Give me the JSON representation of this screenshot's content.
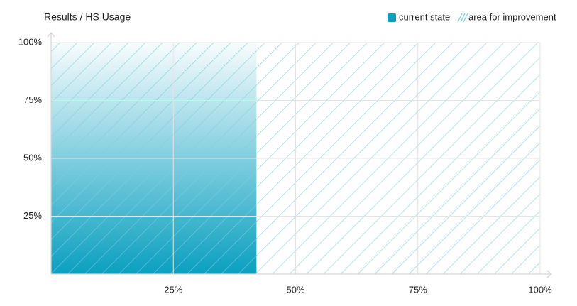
{
  "chart_data": {
    "type": "coverage",
    "title": "Results / HS Usage",
    "series": [
      {
        "name": "current state",
        "color": "#0aa0c0",
        "values": [
          42
        ]
      },
      {
        "name": "area for improvement",
        "color": "#7fcde0",
        "values": [
          58
        ]
      }
    ],
    "xlim": [
      0,
      100
    ],
    "xticks": [
      {
        "value": 25,
        "label": "25%"
      },
      {
        "value": 50,
        "label": "50%"
      },
      {
        "value": 75,
        "label": "75%"
      },
      {
        "value": 100,
        "label": "100%"
      }
    ],
    "ylim": [
      0,
      100
    ],
    "yticks": [
      {
        "value": 25,
        "label": "25%"
      },
      {
        "value": 50,
        "label": "50%"
      },
      {
        "value": 75,
        "label": "75%"
      },
      {
        "value": 100,
        "label": "100%"
      }
    ],
    "grid": true,
    "legend": "top-right"
  }
}
